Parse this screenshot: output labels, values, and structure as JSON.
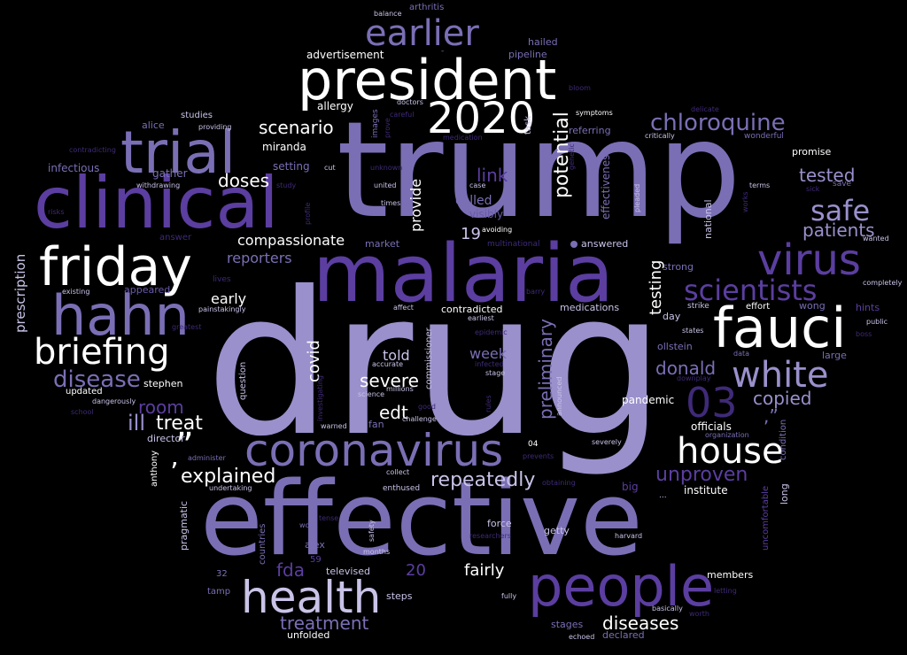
{
  "colors": {
    "background": "#000000",
    "lavender": "#7a6fb5",
    "deep_purple": "#5b3ea0",
    "light_lavender": "#9a90cc",
    "pale": "#c9c3e8",
    "dark_purple": "#3f2a78",
    "white": "#ffffff"
  },
  "words": {
    "drug": "drug",
    "trump": "trump",
    "effective": "effective",
    "malaria": "malaria",
    "clinical": "clinical",
    "president": "president",
    "people": "people",
    "coronavirus": "coronavirus",
    "fauci": "fauci",
    "friday": "friday",
    "hahn": "hahn",
    "trial": "trial",
    "health": "health",
    "virus": "virus",
    "year": "2020",
    "earlier": "earlier",
    "white": "white",
    "house": "house",
    "briefing": "briefing",
    "scientists": "scientists",
    "chloroquine": "chloroquine",
    "safe": "safe",
    "disease": "disease",
    "unproven": "unproven",
    "repeatedly": "repeatedly",
    "explained": "explained",
    "treat": "treat",
    "ill": "ill",
    "room": "room",
    "severe": "severe",
    "edt": "edt",
    "copied": "copied",
    "donald": "donald",
    "doses": "doses",
    "patients": "patients",
    "tested": "tested",
    "scenario": "scenario",
    "link": "link",
    "potential": "potential",
    "preliminary": "preliminary",
    "testing": "testing",
    "covid": "covid",
    "told": "told",
    "week": "week",
    "treatment": "treatment",
    "diseases": "diseases",
    "fda": "fda",
    "fairly": "fairly",
    "num_03": "03",
    "num_20": "20",
    "num_19": "19",
    "compassionate": "compassionate",
    "reporters": "reporters",
    "early": "early",
    "provide": "provide",
    "called": "called",
    "visibly": "visibly",
    "quote_close": "”",
    "apostrophe": "’",
    "comma_quote": ",”",
    "pandemic": "pandemic",
    "officials": "officials",
    "institute": "institute",
    "big": "big",
    "long": "long",
    "condition": "condition",
    "uncomfortable": "uncomfortable",
    "prescription": "prescription",
    "infectious": "infectious",
    "gather": "gather",
    "withdrawing": "withdrawing",
    "alice": "alice",
    "studies": "studies",
    "providing": "providing",
    "contradicting": "contradicting",
    "risks": "risks",
    "answer": "answer",
    "existing": "existing",
    "appeared": "appeared",
    "painstakingly": "painstakingly",
    "greatest": "greatest",
    "updated": "updated",
    "dangerously": "dangerously",
    "school": "school",
    "stephen": "stephen",
    "director": "director",
    "anthony": "anthony",
    "administer": "administer",
    "undertaking": "undertaking",
    "pragmatic": "pragmatic",
    "countries": "countries",
    "work": "work",
    "tense": "tense",
    "alex": "alex",
    "num_59": "59",
    "num_32": "32",
    "tamp": "tamp",
    "televised": "televised",
    "unfolded": "unfolded",
    "steps": "steps",
    "months": "months",
    "safety": "safety",
    "enthused": "enthused",
    "collect": "collect",
    "force": "force",
    "getty": "getty",
    "researchers": "researchers",
    "harvard": "harvard",
    "members": "members",
    "letting": "letting",
    "fully": "fully",
    "basically": "basically",
    "worth": "worth",
    "stages": "stages",
    "echoed": "echoed",
    "declared": "declared",
    "miranda": "miranda",
    "setting": "setting",
    "cut": "cut",
    "study": "study",
    "profile": "profile",
    "unknown": "unknown",
    "united": "united",
    "times": "times",
    "images": "images",
    "prove": "prove",
    "careful": "careful",
    "doctors": "doctors",
    "allergy": "allergy",
    "advertisement": "advertisement",
    "pipeline": "pipeline",
    "hailed": "hailed",
    "balance": "balance",
    "arthritis": "arthritis",
    "bloom": "bloom",
    "symptoms": "symptoms",
    "referring": "referring",
    "task": "task",
    "medication": "medication",
    "critically": "critically",
    "delicate": "delicate",
    "wonderful": "wonderful",
    "promise": "promise",
    "terms": "terms",
    "sick": "sick",
    "save": "save",
    "works": "works",
    "pleaded": "pleaded",
    "confidence": "confidence",
    "national": "national",
    "effectiveness": "effectiveness",
    "genetic": "genetic",
    "case": "case",
    "avoiding": "avoiding",
    "multinational": "multinational",
    "market": "market",
    "answered": "answered",
    "strong": "strong",
    "wanted": "wanted",
    "completely": "completely",
    "barry": "barry",
    "affect": "affect",
    "contradicted": "contradicted",
    "earliest": "earliest",
    "medications": "medications",
    "day": "day",
    "strike": "strike",
    "effort": "effort",
    "wong": "wong",
    "hints": "hints",
    "public": "public",
    "boss": "boss",
    "states": "states",
    "ollstein": "ollstein",
    "large": "large",
    "data": "data",
    "downplay": "downplay",
    "epidemic": "epidemic",
    "infected": "infected",
    "stage": "stage",
    "announced": "announced",
    "commissioner": "commissioner",
    "question": "question",
    "investigating": "investigating",
    "accurate": "accurate",
    "millions": "millions",
    "science": "science",
    "good": "good",
    "challenge": "challenge",
    "fan": "fan",
    "warned": "warned",
    "rules": "rules",
    "prevents": "prevents",
    "obtaining": "obtaining",
    "severely": "severely",
    "organization": "organization",
    "lives": "lives",
    "num_04": "04",
    "ellipsis": "...",
    "hyphen": "-"
  }
}
